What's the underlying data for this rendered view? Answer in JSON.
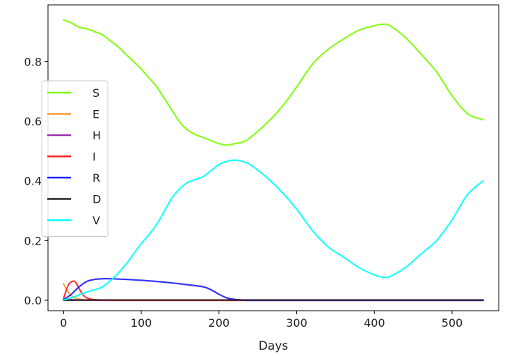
{
  "chart_data": {
    "type": "line",
    "title": "",
    "xlabel": "Days",
    "ylabel": "",
    "xlim": [
      -20,
      560
    ],
    "ylim": [
      -0.035,
      0.99
    ],
    "xticks": [
      0,
      100,
      200,
      300,
      400,
      500
    ],
    "xtick_labels": [
      "0",
      "100",
      "200",
      "300",
      "400",
      "500"
    ],
    "yticks": [
      0.0,
      0.2,
      0.4,
      0.6,
      0.8
    ],
    "ytick_labels": [
      "0.0",
      "0.2",
      "0.4",
      "0.6",
      "0.8"
    ],
    "grid": false,
    "legend_position": "center-left",
    "series": [
      {
        "name": "S",
        "color": "#7CFC00",
        "x": [
          0,
          10,
          20,
          30,
          40,
          50,
          60,
          70,
          80,
          90,
          100,
          110,
          120,
          130,
          140,
          150,
          160,
          170,
          180,
          190,
          200,
          210,
          220,
          230,
          240,
          260,
          280,
          300,
          320,
          340,
          360,
          380,
          400,
          410,
          420,
          440,
          460,
          480,
          500,
          520,
          540
        ],
        "y": [
          0.94,
          0.93,
          0.915,
          0.91,
          0.9,
          0.89,
          0.87,
          0.85,
          0.825,
          0.8,
          0.775,
          0.745,
          0.715,
          0.675,
          0.635,
          0.595,
          0.57,
          0.555,
          0.545,
          0.535,
          0.525,
          0.52,
          0.525,
          0.53,
          0.545,
          0.59,
          0.645,
          0.715,
          0.79,
          0.84,
          0.875,
          0.905,
          0.92,
          0.925,
          0.92,
          0.88,
          0.825,
          0.765,
          0.685,
          0.625,
          0.605
        ]
      },
      {
        "name": "E",
        "color": "#FF9933",
        "x": [
          0,
          2,
          4,
          6,
          8,
          10,
          15,
          20,
          30,
          40,
          60,
          100,
          200,
          300,
          400,
          540
        ],
        "y": [
          0.055,
          0.045,
          0.035,
          0.026,
          0.02,
          0.015,
          0.008,
          0.004,
          0.001,
          0,
          0,
          0,
          0,
          0,
          0,
          0
        ]
      },
      {
        "name": "H",
        "color": "#9B30B0",
        "x": [
          0,
          10,
          20,
          40,
          80,
          200,
          400,
          540
        ],
        "y": [
          0.001,
          0.002,
          0.001,
          0.0,
          0.0,
          0.0,
          0.0,
          0.0
        ]
      },
      {
        "name": "I",
        "color": "#FF2020",
        "x": [
          0,
          3,
          6,
          9,
          12,
          15,
          18,
          21,
          25,
          30,
          35,
          40,
          50,
          60,
          100,
          540
        ],
        "y": [
          0.005,
          0.03,
          0.05,
          0.06,
          0.064,
          0.062,
          0.05,
          0.035,
          0.018,
          0.008,
          0.004,
          0.002,
          0.001,
          0.0,
          0.0,
          0.0
        ]
      },
      {
        "name": "R",
        "color": "#1E1EFF",
        "x": [
          0,
          10,
          20,
          30,
          40,
          50,
          60,
          80,
          100,
          120,
          140,
          160,
          180,
          190,
          200,
          210,
          220,
          230,
          240,
          300,
          400,
          540
        ],
        "y": [
          0.002,
          0.02,
          0.045,
          0.063,
          0.07,
          0.072,
          0.072,
          0.07,
          0.067,
          0.063,
          0.058,
          0.052,
          0.045,
          0.035,
          0.02,
          0.008,
          0.003,
          0.001,
          0.0,
          0.0,
          0.0,
          0.0
        ]
      },
      {
        "name": "D",
        "color": "#202020",
        "x": [
          0,
          20,
          40,
          100,
          200,
          300,
          400,
          540
        ],
        "y": [
          0.0,
          0.0005,
          0.001,
          0.001,
          0.001,
          0.001,
          0.001,
          0.001
        ]
      },
      {
        "name": "V",
        "color": "#00FFFF",
        "x": [
          0,
          10,
          20,
          30,
          40,
          50,
          60,
          70,
          80,
          90,
          100,
          110,
          120,
          130,
          140,
          150,
          160,
          170,
          180,
          190,
          200,
          210,
          220,
          230,
          240,
          260,
          280,
          300,
          320,
          340,
          360,
          380,
          400,
          410,
          420,
          440,
          460,
          480,
          500,
          520,
          540
        ],
        "y": [
          0.001,
          0.008,
          0.018,
          0.028,
          0.035,
          0.045,
          0.065,
          0.09,
          0.12,
          0.155,
          0.19,
          0.22,
          0.255,
          0.3,
          0.345,
          0.375,
          0.395,
          0.405,
          0.415,
          0.435,
          0.455,
          0.465,
          0.47,
          0.465,
          0.455,
          0.415,
          0.365,
          0.305,
          0.235,
          0.18,
          0.145,
          0.11,
          0.085,
          0.078,
          0.08,
          0.11,
          0.155,
          0.2,
          0.27,
          0.355,
          0.4
        ]
      }
    ]
  }
}
